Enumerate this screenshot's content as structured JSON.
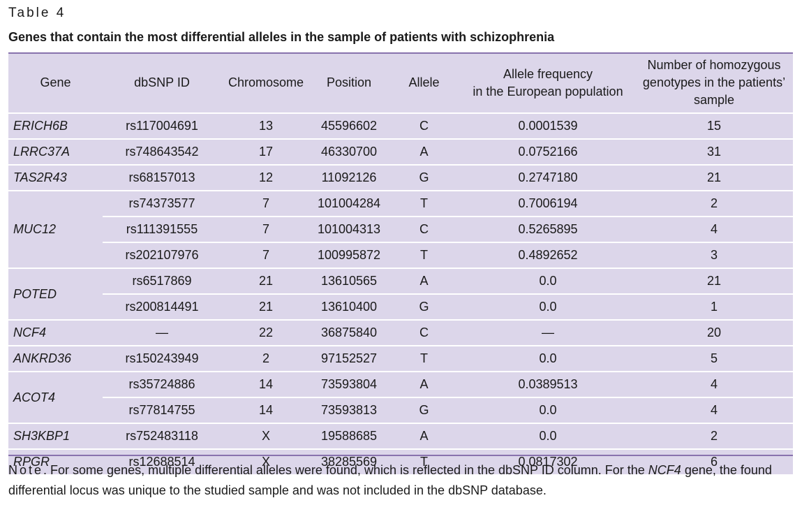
{
  "table_label": "Table 4",
  "caption": "Genes that contain the most differential alleles in the sample of patients with schizophrenia",
  "headers": {
    "gene": "Gene",
    "dbsnp": "dbSNP ID",
    "chromosome": "Chromosome",
    "position": "Position",
    "allele": "Allele",
    "freq_1": "Allele frequency",
    "freq_2": "in the European population",
    "homo_1": "Number of homozygous",
    "homo_2": "genotypes in the patients’",
    "homo_3": "sample"
  },
  "rows": [
    {
      "gene": "ERICH6B",
      "dbsnp": "rs117004691",
      "chromosome": "13",
      "position": "45596602",
      "allele": "C",
      "frequency": "0.0001539",
      "homozygous": "15"
    },
    {
      "gene": "LRRC37A",
      "dbsnp": "rs748643542",
      "chromosome": "17",
      "position": "46330700",
      "allele": "A",
      "frequency": "0.0752166",
      "homozygous": "31"
    },
    {
      "gene": "TAS2R43",
      "dbsnp": "rs68157013",
      "chromosome": "12",
      "position": "11092126",
      "allele": "G",
      "frequency": "0.2747180",
      "homozygous": "21"
    },
    {
      "gene": "MUC12",
      "dbsnp": "rs74373577",
      "chromosome": "7",
      "position": "101004284",
      "allele": "T",
      "frequency": "0.7006194",
      "homozygous": "2"
    },
    {
      "gene": "",
      "dbsnp": "rs111391555",
      "chromosome": "7",
      "position": "101004313",
      "allele": "C",
      "frequency": "0.5265895",
      "homozygous": "4"
    },
    {
      "gene": "",
      "dbsnp": "rs202107976",
      "chromosome": "7",
      "position": "100995872",
      "allele": "T",
      "frequency": "0.4892652",
      "homozygous": "3"
    },
    {
      "gene": "POTED",
      "dbsnp": "rs6517869",
      "chromosome": "21",
      "position": "13610565",
      "allele": "A",
      "frequency": "0.0",
      "homozygous": "21"
    },
    {
      "gene": "",
      "dbsnp": "rs200814491",
      "chromosome": "21",
      "position": "13610400",
      "allele": "G",
      "frequency": "0.0",
      "homozygous": "1"
    },
    {
      "gene": "NCF4",
      "dbsnp": "—",
      "chromosome": "22",
      "position": "36875840",
      "allele": "C",
      "frequency": "—",
      "homozygous": "20"
    },
    {
      "gene": "ANKRD36",
      "dbsnp": "rs150243949",
      "chromosome": "2",
      "position": "97152527",
      "allele": "T",
      "frequency": "0.0",
      "homozygous": "5"
    },
    {
      "gene": "ACOT4",
      "dbsnp": "rs35724886",
      "chromosome": "14",
      "position": "73593804",
      "allele": "A",
      "frequency": "0.0389513",
      "homozygous": "4"
    },
    {
      "gene": "",
      "dbsnp": "rs77814755",
      "chromosome": "14",
      "position": "73593813",
      "allele": "G",
      "frequency": "0.0",
      "homozygous": "4"
    },
    {
      "gene": "SH3KBP1",
      "dbsnp": "rs752483118",
      "chromosome": "X",
      "position": "19588685",
      "allele": "A",
      "frequency": "0.0",
      "homozygous": "2"
    },
    {
      "gene": "RPGR",
      "dbsnp": "rs12688514",
      "chromosome": "X",
      "position": "38285569",
      "allele": "T",
      "frequency": "0.0817302",
      "homozygous": "6"
    }
  ],
  "note": {
    "prefix": "Note",
    "text_1": ". For some genes, multiple differential alleles were found, which is reflected in the dbSNP ID column. For the ",
    "gene": "NCF4",
    "text_2": " gene, the found differential locus was unique to the studied sample and was not included in the dbSNP database."
  },
  "colors": {
    "table_bg": "#dcd6ea",
    "rule": "#8872ad"
  }
}
